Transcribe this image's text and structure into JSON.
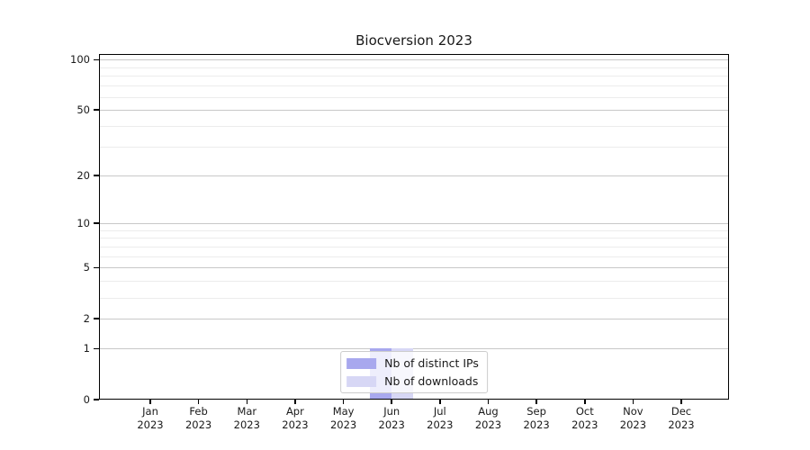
{
  "chart_data": {
    "type": "bar",
    "title": "Biocversion 2023",
    "categories": [
      "Jan",
      "Feb",
      "Mar",
      "Apr",
      "May",
      "Jun",
      "Jul",
      "Aug",
      "Sep",
      "Oct",
      "Nov",
      "Dec"
    ],
    "category_year": "2023",
    "series": [
      {
        "name": "Nb of distinct IPs",
        "color": "#a8a8ee",
        "values": [
          0,
          0,
          0,
          0,
          0,
          1,
          0,
          0,
          0,
          0,
          0,
          0
        ]
      },
      {
        "name": "Nb of downloads",
        "color": "#d7d7f5",
        "values": [
          0,
          0,
          0,
          0,
          0,
          1,
          0,
          0,
          0,
          0,
          0,
          0
        ]
      }
    ],
    "yscale": "log1p",
    "ylim": [
      0,
      108
    ],
    "yticks": [
      0,
      1,
      2,
      5,
      10,
      20,
      50,
      100
    ],
    "yticks_minor": [
      3,
      4,
      6,
      7,
      8,
      9,
      30,
      40,
      60,
      70,
      80,
      90
    ],
    "grid": true,
    "legend_position": "lower center",
    "colors": {
      "grid_major": "#c8c8c8",
      "grid_minor": "#ececec",
      "frame": "#000000",
      "background": "#ffffff",
      "text": "#1a1a1a"
    }
  }
}
